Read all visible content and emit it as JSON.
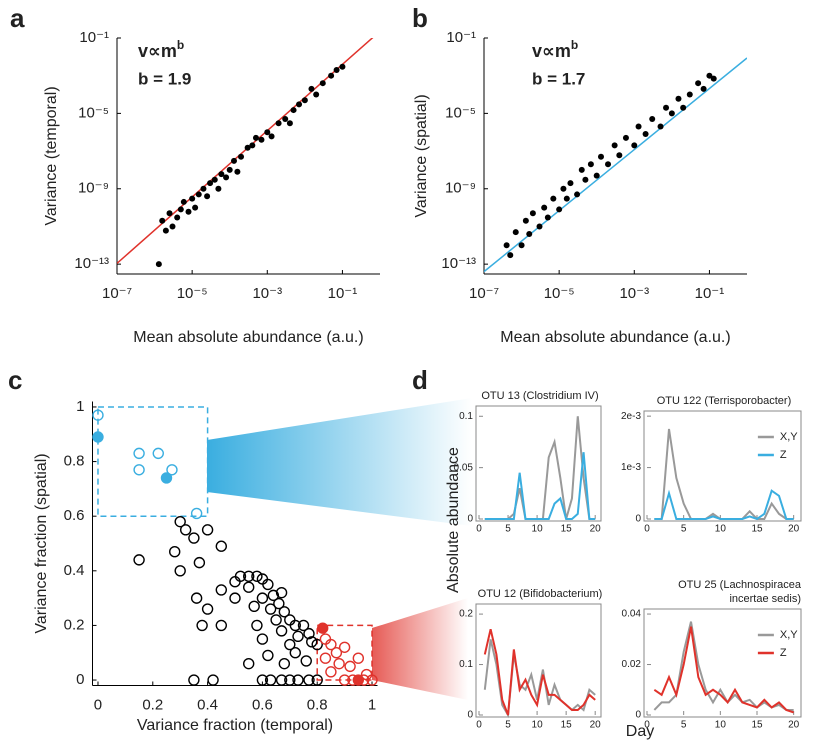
{
  "chart_data": [
    {
      "type": "scatter",
      "letter": "a",
      "log_x": true,
      "log_y": true,
      "color": "#000000",
      "x": [
        1.6e-06,
        2e-06,
        1.3e-06,
        2.5e-06,
        3e-06,
        4e-06,
        5e-06,
        6e-06,
        8e-06,
        1e-05,
        1.2e-05,
        1.5e-05,
        2e-05,
        2.5e-05,
        3e-05,
        4e-05,
        5e-05,
        6e-05,
        8e-05,
        0.0001,
        0.00013,
        0.00016,
        0.0002,
        0.0003,
        0.0004,
        0.0005,
        0.0007,
        0.001,
        0.0013,
        0.002,
        0.003,
        0.004,
        0.005,
        0.007,
        0.01,
        0.015,
        0.02,
        0.03,
        0.05,
        0.07,
        0.1
      ],
      "y": [
        2e-11,
        6e-12,
        1e-13,
        5e-11,
        1e-11,
        3e-11,
        8e-11,
        2e-10,
        6e-11,
        3e-10,
        1e-10,
        5e-10,
        1e-09,
        4e-10,
        2e-09,
        3e-09,
        1e-09,
        6e-09,
        4e-09,
        1e-08,
        3e-08,
        8e-09,
        5e-08,
        1.5e-07,
        2e-07,
        5e-07,
        4e-07,
        1e-06,
        6e-07,
        3e-06,
        5e-06,
        3e-06,
        1.5e-05,
        3e-05,
        5e-05,
        0.0002,
        0.0001,
        0.0004,
        0.001,
        0.002,
        0.003
      ],
      "fit": {
        "x": [
          1e-07,
          1
        ],
        "y": [
          1.1e-13,
          0.23
        ],
        "color": "#e0322b"
      },
      "formula": "v∝m",
      "formula_sup": "b",
      "fit_label": "b = 1.9",
      "xlabel": "Mean absolute abundance (a.u.)",
      "ylabel": "Variance (temporal)",
      "xlim": [
        1e-07,
        1
      ],
      "ylim": [
        3e-14,
        0.1
      ],
      "xticks": [
        {
          "value": 1e-07,
          "label": "10⁻⁷"
        },
        {
          "value": 1e-05,
          "label": "10⁻⁵"
        },
        {
          "value": 0.001,
          "label": "10⁻³"
        },
        {
          "value": 0.1,
          "label": "10⁻¹"
        }
      ],
      "yticks": [
        {
          "value": 0.1,
          "label": "10⁻¹"
        },
        {
          "value": 1e-05,
          "label": "10⁻⁵"
        },
        {
          "value": 1e-09,
          "label": "10⁻⁹"
        },
        {
          "value": 1e-13,
          "label": "10⁻¹³"
        }
      ]
    },
    {
      "type": "scatter",
      "letter": "b",
      "log_x": true,
      "log_y": true,
      "color": "#000000",
      "x": [
        4e-07,
        5e-07,
        7e-07,
        1e-06,
        1.3e-06,
        1.6e-06,
        2e-06,
        3e-06,
        4e-06,
        5e-06,
        7e-06,
        1e-05,
        1.3e-05,
        1.6e-05,
        2e-05,
        3e-05,
        4e-05,
        5e-05,
        7e-05,
        0.0001,
        0.00013,
        0.0002,
        0.0003,
        0.0004,
        0.0006,
        0.001,
        0.0013,
        0.002,
        0.003,
        0.005,
        0.007,
        0.01,
        0.015,
        0.02,
        0.03,
        0.05,
        0.07,
        0.1,
        0.13
      ],
      "y": [
        1e-12,
        3e-13,
        5e-12,
        1e-12,
        2e-11,
        4e-12,
        5e-11,
        1e-11,
        1e-10,
        3e-11,
        3e-10,
        8e-11,
        1e-09,
        3e-10,
        2e-09,
        5e-10,
        1e-08,
        3e-09,
        2e-08,
        5e-09,
        5e-08,
        2e-08,
        2e-07,
        6e-08,
        5e-07,
        2e-07,
        2e-06,
        8e-07,
        5e-06,
        2e-06,
        2e-05,
        1e-05,
        6e-05,
        2e-05,
        0.0001,
        0.0004,
        0.0002,
        0.001,
        0.0007
      ],
      "fit": {
        "x": [
          1e-07,
          1
        ],
        "y": [
          4e-14,
          0.0087
        ],
        "color": "#3aaee0"
      },
      "formula": "v∝m",
      "formula_sup": "b",
      "fit_label": "b = 1.7",
      "xlabel": "Mean absolute abundance (a.u.)",
      "ylabel": "Variance (spatial)",
      "xlim": [
        1e-07,
        1
      ],
      "ylim": [
        3e-14,
        0.1
      ],
      "xticks": [
        {
          "value": 1e-07,
          "label": "10⁻⁷"
        },
        {
          "value": 1e-05,
          "label": "10⁻⁵"
        },
        {
          "value": 0.001,
          "label": "10⁻³"
        },
        {
          "value": 0.1,
          "label": "10⁻¹"
        }
      ],
      "yticks": [
        {
          "value": 0.1,
          "label": "10⁻¹"
        },
        {
          "value": 1e-05,
          "label": "10⁻⁵"
        },
        {
          "value": 1e-09,
          "label": "10⁻⁹"
        },
        {
          "value": 1e-13,
          "label": "10⁻¹³"
        }
      ]
    },
    {
      "type": "fraction",
      "letter": "c",
      "xlabel": "Variance fraction (temporal)",
      "ylabel": "Variance fraction (spatial)",
      "xlim": [
        -0.02,
        1.02
      ],
      "ylim": [
        -0.02,
        1.02
      ],
      "xticks": [
        0,
        0.2,
        0.4,
        0.6,
        0.8,
        1
      ],
      "yticks": [
        0,
        0.2,
        0.4,
        0.6,
        0.8,
        1
      ],
      "highlight_boxes": [
        {
          "color": "#3aaee0",
          "xlim": [
            0,
            0.4
          ],
          "ylim": [
            0.6,
            1
          ]
        },
        {
          "color": "#e0322b",
          "xlim": [
            0.8,
            1
          ],
          "ylim": [
            0,
            0.2
          ]
        }
      ],
      "series": [
        {
          "color": "#000000",
          "filled": false,
          "x": [
            0.15,
            0.3,
            0.28,
            0.32,
            0.35,
            0.4,
            0.3,
            0.37,
            0.36,
            0.4,
            0.38,
            0.35,
            0.45,
            0.45,
            0.45,
            0.5,
            0.5,
            0.52,
            0.55,
            0.55,
            0.57,
            0.58,
            0.6,
            0.6,
            0.58,
            0.6,
            0.62,
            0.63,
            0.64,
            0.65,
            0.66,
            0.67,
            0.67,
            0.68,
            0.7,
            0.7,
            0.72,
            0.72,
            0.73,
            0.75,
            0.76,
            0.77,
            0.78,
            0.8,
            0.6,
            0.63,
            0.67,
            0.7,
            0.73,
            0.77,
            0.8,
            0.55,
            0.62,
            0.42,
            0.68
          ],
          "y": [
            0.44,
            0.58,
            0.47,
            0.55,
            0.52,
            0.55,
            0.4,
            0.43,
            0.3,
            0.26,
            0.2,
            0,
            0.33,
            0.49,
            0.2,
            0.36,
            0.3,
            0.38,
            0.38,
            0.34,
            0.27,
            0.38,
            0.37,
            0.3,
            0.2,
            0.15,
            0.35,
            0.26,
            0.31,
            0.22,
            0.28,
            0.32,
            0.18,
            0.25,
            0.22,
            0.13,
            0.2,
            0.1,
            0.16,
            0.2,
            0.07,
            0.17,
            0.14,
            0.13,
            0,
            0,
            0,
            0,
            0,
            0,
            0,
            0.06,
            0.09,
            0,
            0.06
          ]
        },
        {
          "color": "#3aaee0",
          "filled": false,
          "x": [
            0,
            0.15,
            0.22,
            0.15,
            0.27,
            0.36
          ],
          "y": [
            0.97,
            0.83,
            0.83,
            0.77,
            0.77,
            0.61
          ]
        },
        {
          "color": "#3aaee0",
          "filled": true,
          "x": [
            0,
            0.25
          ],
          "y": [
            0.89,
            0.74
          ]
        },
        {
          "color": "#e0322b",
          "filled": false,
          "x": [
            0.83,
            0.85,
            0.87,
            0.83,
            0.88,
            0.9,
            0.92,
            0.95,
            0.85,
            0.9,
            0.93,
            0.98,
            1,
            0.97
          ],
          "y": [
            0.15,
            0.13,
            0.1,
            0.08,
            0.06,
            0.12,
            0.05,
            0.08,
            0.03,
            0,
            0,
            0.02,
            0,
            0
          ]
        },
        {
          "color": "#e0322b",
          "filled": true,
          "x": [
            0.82,
            0.95
          ],
          "y": [
            0.19,
            0
          ]
        }
      ]
    },
    {
      "type": "line",
      "title": "OTU 13 (Clostridium IV)",
      "x": [
        1,
        2,
        3,
        4,
        5,
        6,
        7,
        8,
        9,
        10,
        11,
        12,
        13,
        14,
        15,
        16,
        17,
        18,
        19,
        20
      ],
      "xlim": [
        0,
        21
      ],
      "ylim": [
        0,
        0.11
      ],
      "xticks": [
        0,
        5,
        10,
        15,
        20
      ],
      "yticks": [
        0,
        0.05,
        0.1
      ],
      "series": [
        {
          "color": "#999999",
          "values": [
            0,
            0,
            0,
            0,
            0,
            0.005,
            0.03,
            0,
            0,
            0,
            0,
            0.06,
            0.075,
            0.04,
            0,
            0.02,
            0.1,
            0.04,
            0,
            0
          ]
        },
        {
          "color": "#3aaee0",
          "values": [
            0,
            0,
            0,
            0,
            0,
            0,
            0.045,
            0,
            0,
            0,
            0,
            0,
            0.015,
            0.02,
            0,
            0,
            0.005,
            0.065,
            0,
            0
          ]
        }
      ]
    },
    {
      "type": "line",
      "title": "OTU 122 (Terrisporobacter)",
      "x": [
        1,
        2,
        3,
        4,
        5,
        6,
        7,
        8,
        9,
        10,
        11,
        12,
        13,
        14,
        15,
        16,
        17,
        18,
        19,
        20
      ],
      "xlim": [
        0,
        21
      ],
      "ylim": [
        0,
        0.0021
      ],
      "xticks": [
        0,
        5,
        10,
        15,
        20
      ],
      "yticks": [
        0,
        {
          "value": 0.001,
          "label": "1e-3"
        },
        {
          "value": 0.002,
          "label": "2e-3"
        }
      ],
      "series": [
        {
          "name": "X,Y",
          "color": "#999999",
          "values": [
            0,
            0,
            0.00175,
            0.0008,
            0.0003,
            0,
            0,
            0,
            0.0001,
            0,
            0,
            0,
            0,
            0.00015,
            0,
            0,
            0.0003,
            0.0001,
            0,
            0
          ]
        },
        {
          "name": "Z",
          "color": "#3aaee0",
          "values": [
            0,
            0,
            0.0005,
            0,
            0,
            0,
            0,
            0,
            5e-05,
            0,
            0,
            0,
            0,
            5e-05,
            0,
            0.0001,
            0.00055,
            0.00045,
            0,
            0
          ]
        }
      ]
    },
    {
      "type": "line",
      "title": "OTU 12 (Bifidobacterium)",
      "x": [
        1,
        2,
        3,
        4,
        5,
        6,
        7,
        8,
        9,
        10,
        11,
        12,
        13,
        14,
        15,
        16,
        17,
        18,
        19,
        20
      ],
      "xlim": [
        0,
        21
      ],
      "ylim": [
        0,
        0.22
      ],
      "xticks": [
        0,
        5,
        10,
        15,
        20
      ],
      "yticks": [
        0,
        0.1,
        0.2
      ],
      "series": [
        {
          "color": "#999999",
          "values": [
            0.05,
            0.15,
            0.1,
            0.02,
            0,
            0.12,
            0.06,
            0.05,
            0.08,
            0.03,
            0.09,
            0.02,
            0.06,
            0.03,
            0.02,
            0.01,
            0.02,
            0.01,
            0.05,
            0.04
          ]
        },
        {
          "color": "#e0322b",
          "values": [
            0.12,
            0.17,
            0.12,
            0.03,
            0,
            0.13,
            0.05,
            0.07,
            0.04,
            0.02,
            0.08,
            0.04,
            0.04,
            0.03,
            0.02,
            0.01,
            0.01,
            0.02,
            0.04,
            0.03
          ]
        }
      ]
    },
    {
      "type": "line",
      "title": [
        "OTU 25 (Lachnospiracea",
        "incertae sedis)"
      ],
      "x": [
        1,
        2,
        3,
        4,
        5,
        6,
        7,
        8,
        9,
        10,
        11,
        12,
        13,
        14,
        15,
        16,
        17,
        18,
        19,
        20
      ],
      "xlim": [
        0,
        21
      ],
      "ylim": [
        0,
        0.042
      ],
      "xticks": [
        0,
        5,
        10,
        15,
        20
      ],
      "yticks": [
        0,
        0.02,
        0.04
      ],
      "series": [
        {
          "name": "X,Y",
          "color": "#999999",
          "values": [
            0.002,
            0.005,
            0.005,
            0.008,
            0.025,
            0.037,
            0.02,
            0.01,
            0.005,
            0.01,
            0.005,
            0.008,
            0.005,
            0.006,
            0.003,
            0.005,
            0.003,
            0.004,
            0.002,
            0.002
          ]
        },
        {
          "name": "Z",
          "color": "#e0322b",
          "values": [
            0.01,
            0.008,
            0.015,
            0.008,
            0.02,
            0.035,
            0.015,
            0.008,
            0.01,
            0.008,
            0.005,
            0.01,
            0.005,
            0.004,
            0.003,
            0.006,
            0.003,
            0.005,
            0.002,
            0.001
          ]
        }
      ]
    }
  ],
  "panel_d": {
    "letter": "d",
    "ylabel": "Absolute abundance",
    "xlabel": "Day"
  }
}
